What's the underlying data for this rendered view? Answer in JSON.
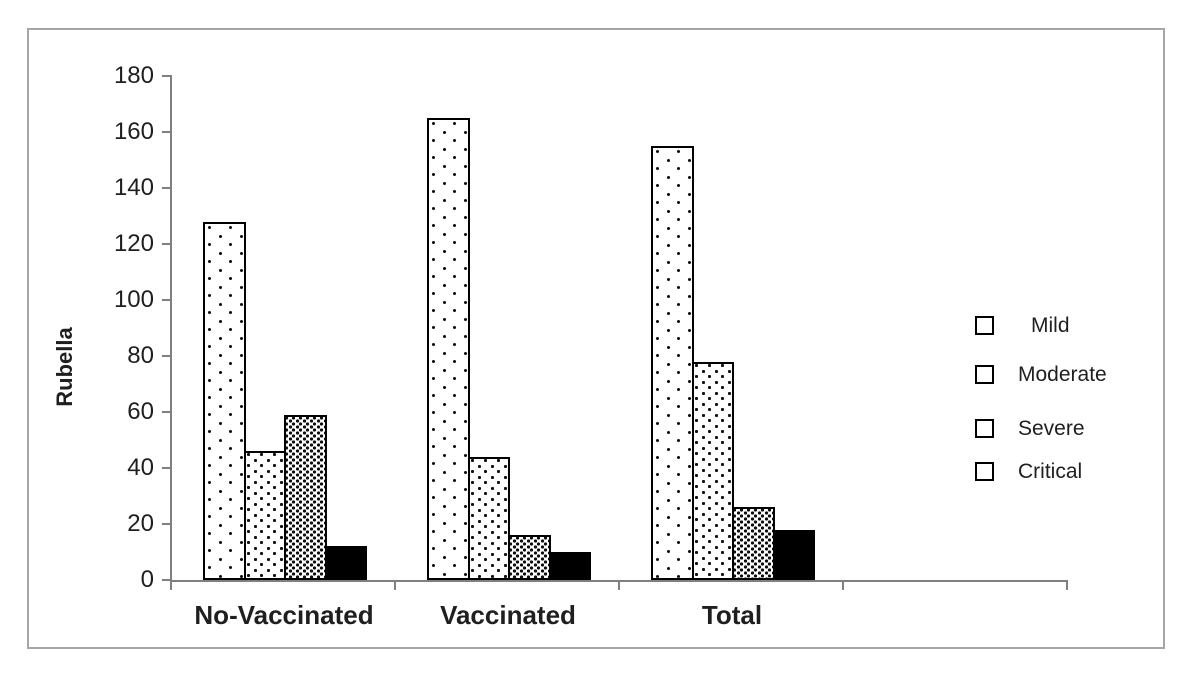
{
  "chart_data": {
    "type": "bar",
    "ylabel": "Rubella",
    "categories": [
      "No-Vaccinated",
      "Vaccinated",
      "Total"
    ],
    "series": [
      {
        "name": "Mild",
        "pattern": "dots-sparse",
        "values": [
          128,
          165,
          155
        ]
      },
      {
        "name": "Moderate",
        "pattern": "dots-medium",
        "values": [
          46,
          44,
          78
        ]
      },
      {
        "name": "Severe",
        "pattern": "dots-dense",
        "values": [
          59,
          16,
          26
        ]
      },
      {
        "name": "Critical",
        "pattern": "solid-black",
        "values": [
          12,
          10,
          18
        ]
      }
    ],
    "ylim": [
      0,
      180
    ],
    "ytick_step": 20,
    "yticks": [
      0,
      20,
      40,
      60,
      80,
      100,
      120,
      140,
      160,
      180
    ],
    "grid": false,
    "legend_position": "right",
    "legend_labels": [
      "Mild",
      "Moderate",
      "Severe",
      "Critical"
    ]
  },
  "colors": {
    "bar_fill": "#000000",
    "bar_border": "#000000",
    "axis": "#808080",
    "chart_border": "#a6a6a6",
    "text": "#1f1f1f",
    "background": "#ffffff"
  }
}
